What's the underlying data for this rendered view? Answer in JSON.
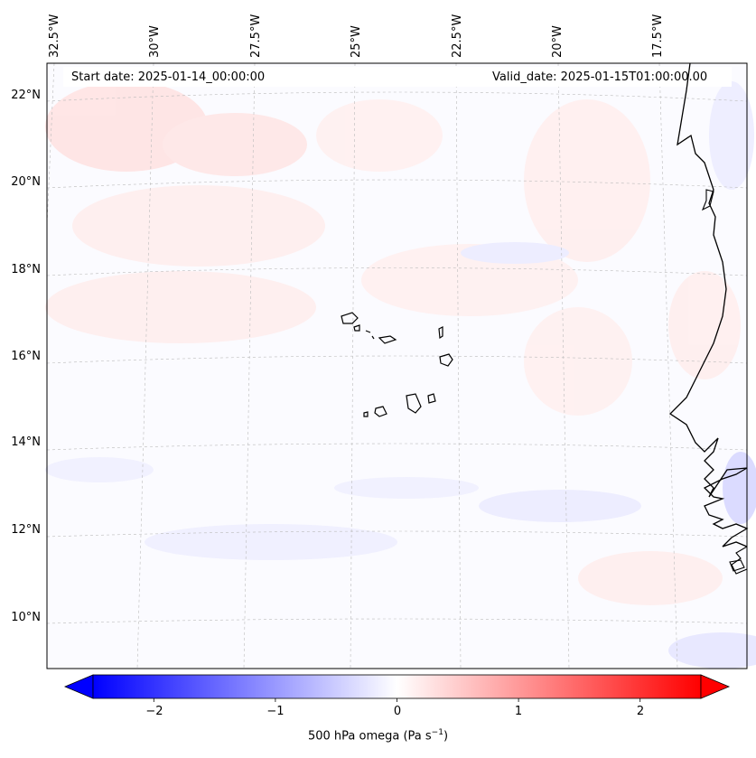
{
  "annotations": {
    "start_date": "Start date: 2025-01-14_00:00:00",
    "valid_date": "Valid_date: 2025-01-15T01:00:00.00"
  },
  "longitude_labels": [
    "32.5°W",
    "30°W",
    "27.5°W",
    "25°W",
    "22.5°W",
    "20°W",
    "17.5°W"
  ],
  "latitude_labels": [
    "22°N",
    "20°N",
    "18°N",
    "16°N",
    "14°N",
    "12°N",
    "10°N"
  ],
  "colorbar": {
    "label_main": "500 hPa omega (Pa s",
    "label_exp": "−1",
    "label_close": ")",
    "ticks": [
      "−2",
      "−1",
      "0",
      "1",
      "2"
    ],
    "range": [
      -2.5,
      2.5
    ],
    "cmap": "bwr",
    "colors": {
      "low": "#0000ff",
      "mid": "#ffffff",
      "high": "#ff0000"
    }
  },
  "field_colors": {
    "pink": "#ffd6d6",
    "light_pink": "#ffeaea",
    "light_blue": "#e6e6ff",
    "background": "#fbfbff"
  },
  "coastline_color": "#000000",
  "gridline_color": "#aaaaaa"
}
